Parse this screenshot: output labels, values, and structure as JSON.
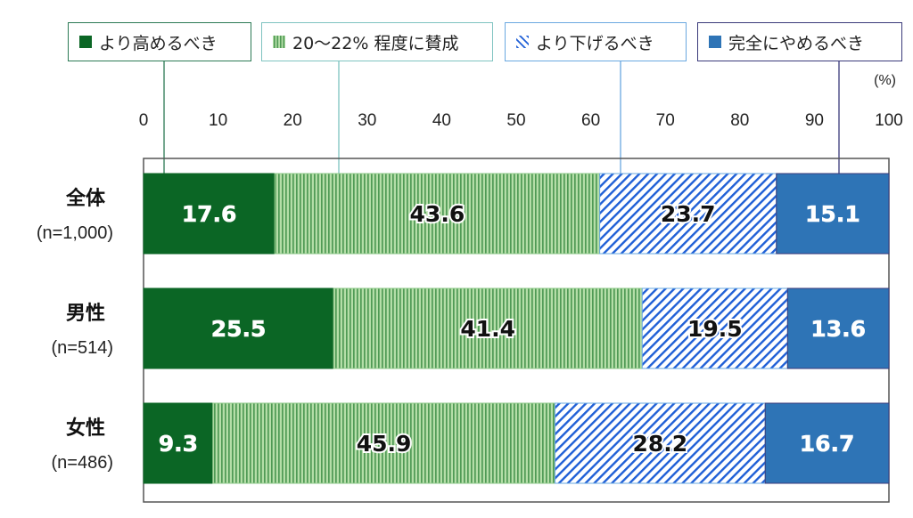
{
  "chart_data": {
    "type": "bar",
    "orientation": "horizontal",
    "stacked": true,
    "unit_label": "(%)",
    "xlim": [
      0,
      100
    ],
    "xticks": [
      0,
      10,
      20,
      30,
      40,
      50,
      60,
      70,
      80,
      90,
      100
    ],
    "categories": [
      {
        "name": "全体",
        "n": "(n=1,000)"
      },
      {
        "name": "男性",
        "n": "(n=514)"
      },
      {
        "name": "女性",
        "n": "(n=486)"
      }
    ],
    "series": [
      {
        "name": "より高めるべき",
        "values": [
          17.6,
          25.5,
          9.3
        ],
        "color": "#0b6625",
        "pattern": "solid",
        "border": "#0b6625",
        "label_color": "#ffffff"
      },
      {
        "name": "20〜22% 程度に賛成",
        "values": [
          43.6,
          41.4,
          45.9
        ],
        "color": "#b5dea8",
        "pattern": "vertical-stripes",
        "stripe": "#4f9a55",
        "border": "#8fc98a",
        "label_color": "#111111"
      },
      {
        "name": "より下げるべき",
        "values": [
          23.7,
          19.5,
          28.2
        ],
        "color": "#ffffff",
        "pattern": "diagonal-stripes",
        "stripe": "#1f5fd6",
        "border": "#6aa8e0",
        "label_color": "#111111"
      },
      {
        "name": "完全にやめるべき",
        "values": [
          15.1,
          13.6,
          16.7
        ],
        "color": "#2e74b6",
        "pattern": "solid",
        "border": "#3a3a7a",
        "label_color": "#ffffff"
      }
    ],
    "data_labels": [
      [
        "17.6",
        "43.6",
        "23.7",
        "15.1"
      ],
      [
        "25.5",
        "41.4",
        "19.5",
        "13.6"
      ],
      [
        "9.3",
        "45.9",
        "28.2",
        "16.7"
      ]
    ],
    "legend_position": "top",
    "grid": false
  }
}
